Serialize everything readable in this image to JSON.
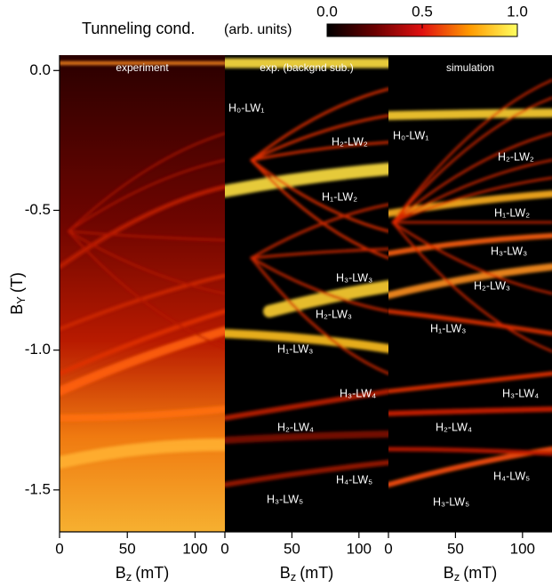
{
  "colorbar": {
    "label": "Tunneling cond.",
    "unit": "(arb. units)",
    "lim": [
      0,
      1
    ],
    "ticks": [
      {
        "value": 0,
        "label": "0.0"
      },
      {
        "value": 0.5,
        "label": "0.5"
      },
      {
        "value": 1,
        "label": "1.0"
      }
    ]
  },
  "chart_data": [
    {
      "type": "heatmap",
      "title": "experiment",
      "xlabel": {
        "symbol": "B",
        "sub": "z",
        "unit": "(mT)"
      },
      "xlim": [
        0,
        122
      ],
      "xticks": [
        0,
        50,
        100
      ],
      "ylabel": {
        "symbol": "B",
        "sub": "Y",
        "unit": "(T)"
      },
      "ylim": [
        -1.65,
        0.055
      ],
      "yticks": [
        {
          "value": 0,
          "label": "0.0"
        },
        {
          "value": -0.5,
          "label": "-0.5"
        },
        {
          "value": -1,
          "label": "-1.0"
        },
        {
          "value": -1.5,
          "label": "-1.5"
        }
      ],
      "annotations": []
    },
    {
      "type": "heatmap",
      "title": "exp. (backgnd sub.)",
      "xlabel": {
        "symbol": "B",
        "sub": "z",
        "unit": "(mT)"
      },
      "xlim": [
        0,
        122
      ],
      "xticks": [
        0,
        50,
        100
      ],
      "ylim": [
        -1.65,
        0.055
      ],
      "annotations": [
        "H₀-LW₁",
        "H₂-LW₂",
        "H₁-LW₂",
        "H₃-LW₃",
        "H₂-LW₃",
        "H₁-LW₃",
        "H₃-LW₄",
        "H₂-LW₄",
        "H₄-LW₅",
        "H₃-LW₅"
      ]
    },
    {
      "type": "heatmap",
      "title": "simulation",
      "xlabel": {
        "symbol": "B",
        "sub": "z",
        "unit": "(mT)"
      },
      "xlim": [
        0,
        122
      ],
      "xticks": [
        0,
        50,
        100
      ],
      "ylim": [
        -1.65,
        0.055
      ],
      "annotations": [
        "H₀-LW₁",
        "H₂-LW₂",
        "H₁-LW₂",
        "H₃-LW₃",
        "H₂-LW₃",
        "H₁-LW₃",
        "H₃-LW₄",
        "H₂-LW₄",
        "H₄-LW₅",
        "H₃-LW₅"
      ]
    }
  ]
}
